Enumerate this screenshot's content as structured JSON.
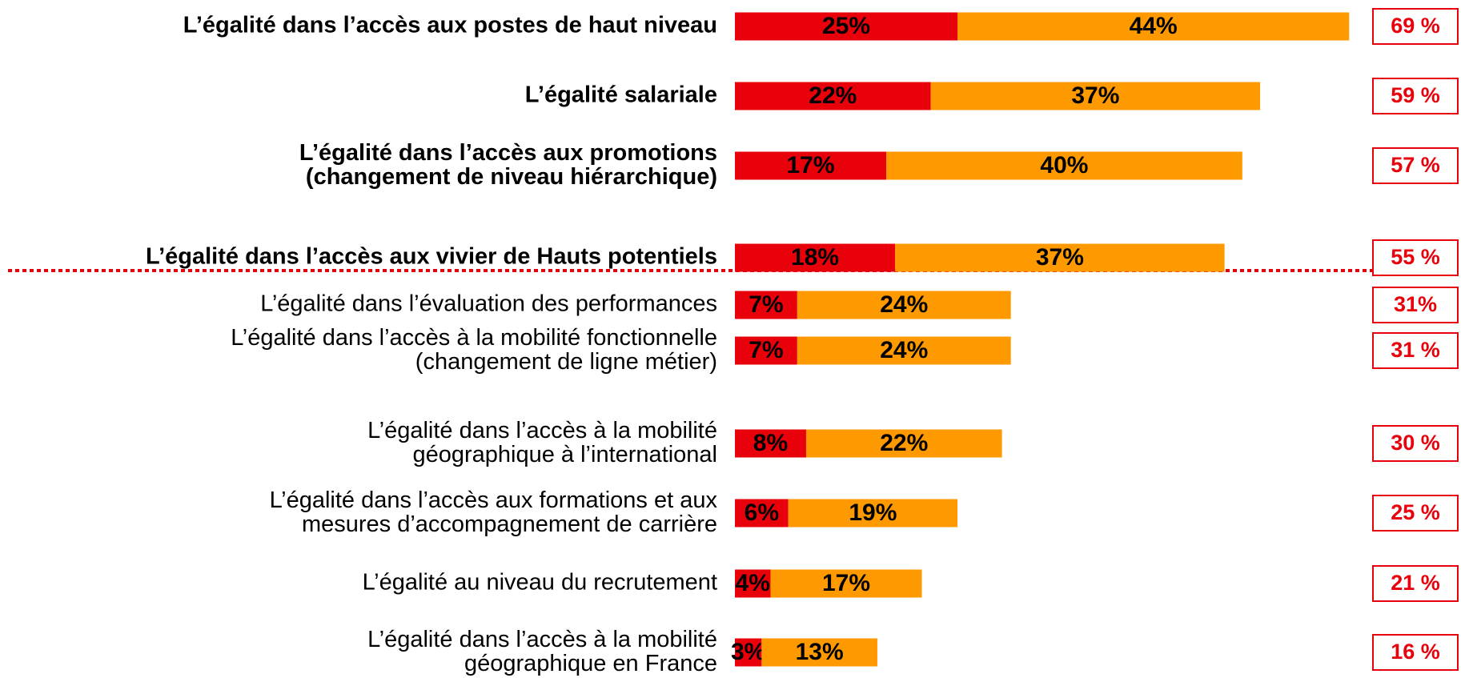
{
  "chart_data": {
    "type": "stacked-barh",
    "categories": [
      "L’égalité dans l’accès aux postes de haut niveau",
      "L’égalité salariale",
      "L’égalité dans l’accès aux promotions\n(changement de niveau hiérarchique)",
      "L’égalité dans l’accès aux vivier de Hauts potentiels",
      "L’égalité dans l’évaluation des performances",
      "L’égalité dans l’accès à la mobilité fonctionnelle\n(changement de ligne métier)",
      "L’égalité dans l’accès à la mobilité\ngéographique à l’international",
      "L’égalité dans l’accès aux formations et aux\nmesures d’accompagnement de carrière",
      "L’égalité au niveau du recrutement",
      "L’égalité dans l’accès à la mobilité\ngéographique en France"
    ],
    "series": [
      {
        "color": "#e8000b",
        "values": [
          25,
          22,
          17,
          18,
          7,
          7,
          8,
          6,
          4,
          3
        ],
        "value_labels": [
          "25%",
          "22%",
          "17%",
          "18%",
          "7%",
          "7%",
          "8%",
          "6%",
          "4%",
          "3%"
        ]
      },
      {
        "color": "#ff9900",
        "values": [
          44,
          37,
          40,
          37,
          24,
          24,
          22,
          19,
          17,
          13
        ],
        "value_labels": [
          "44%",
          "37%",
          "40%",
          "37%",
          "24%",
          "24%",
          "22%",
          "19%",
          "17%",
          "13%"
        ]
      }
    ],
    "totals": {
      "values": [
        69,
        59,
        57,
        55,
        31,
        31,
        30,
        25,
        21,
        16
      ],
      "value_labels": [
        "69 %",
        "59 %",
        "57 %",
        "55 %",
        "31%",
        "31 %",
        "30 %",
        "25 %",
        "21 %",
        "16 %"
      ],
      "color": "#e8000b"
    }
  }
}
